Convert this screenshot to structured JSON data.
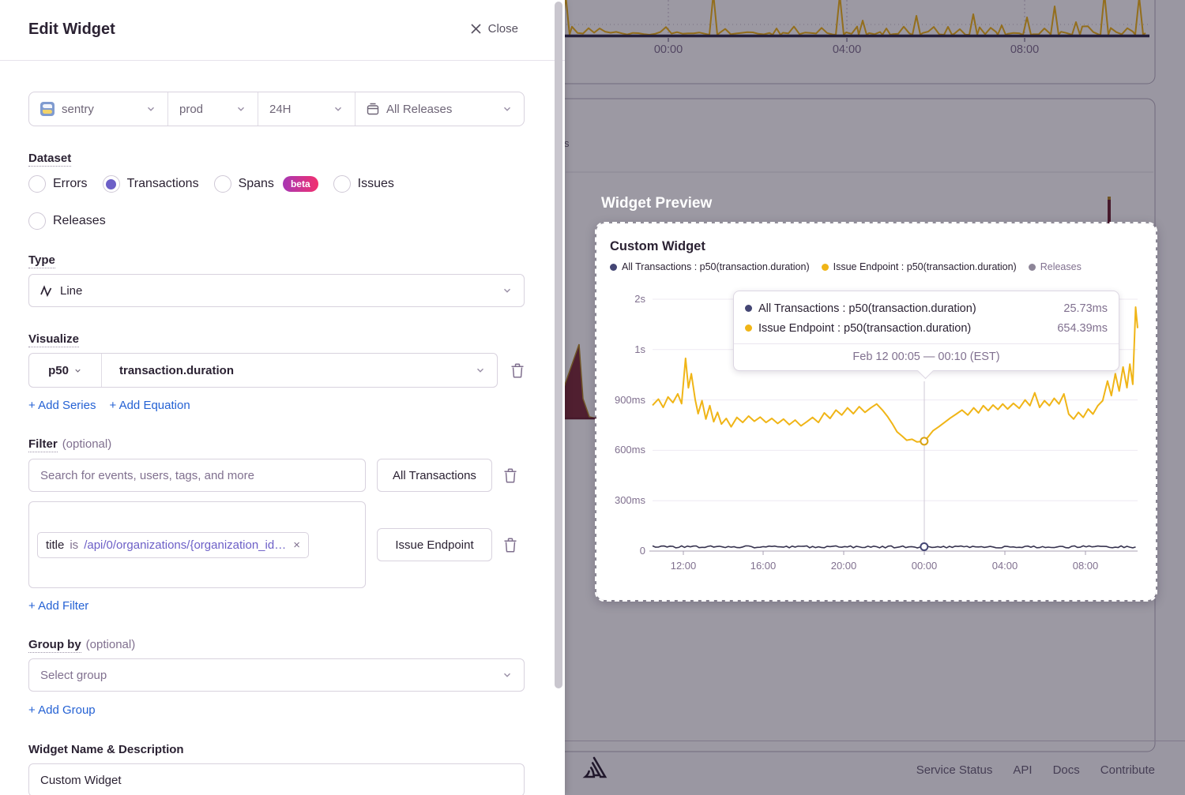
{
  "drawer": {
    "title": "Edit Widget",
    "close_label": "Close",
    "page_filters": {
      "project": "sentry",
      "environment": "prod",
      "date_range": "24H",
      "releases": "All Releases"
    },
    "dataset": {
      "label": "Dataset",
      "options": [
        {
          "label": "Errors",
          "selected": false
        },
        {
          "label": "Transactions",
          "selected": true
        },
        {
          "label": "Spans",
          "selected": false,
          "badge": "beta"
        },
        {
          "label": "Issues",
          "selected": false
        },
        {
          "label": "Releases",
          "selected": false
        }
      ]
    },
    "type": {
      "label": "Type",
      "value": "Line"
    },
    "visualize": {
      "label": "Visualize",
      "aggregate": "p50",
      "field": "transaction.duration",
      "add_series_label": "+ Add Series",
      "add_equation_label": "+ Add Equation"
    },
    "filter": {
      "label": "Filter",
      "optional_label": "(optional)",
      "search_placeholder": "Search for events, users, tags, and more",
      "rows": [
        {
          "alias": "All Transactions"
        },
        {
          "alias": "Issue Endpoint",
          "token": {
            "key": "title",
            "operator": "is",
            "value": "/api/0/organizations/{organization_id…"
          }
        }
      ],
      "add_filter_label": "+ Add Filter"
    },
    "group_by": {
      "label": "Group by",
      "optional_label": "(optional)",
      "placeholder": "Select group",
      "add_group_label": "+ Add Group"
    },
    "name": {
      "label": "Widget Name & Description",
      "value": "Custom Widget"
    }
  },
  "preview": {
    "heading": "Widget Preview",
    "card_title": "Custom Widget",
    "legend": [
      {
        "label": "All Transactions : p50(transaction.duration)",
        "color": "#444674",
        "muted": false
      },
      {
        "label": "Issue Endpoint : p50(transaction.duration)",
        "color": "#f0b517",
        "muted": false
      },
      {
        "label": "Releases",
        "color": "#8d8598",
        "muted": true
      }
    ],
    "tooltip": {
      "rows": [
        {
          "label": "All Transactions : p50(transaction.duration)",
          "value": "25.73ms",
          "color": "#444674"
        },
        {
          "label": "Issue Endpoint : p50(transaction.duration)",
          "value": "654.39ms",
          "color": "#f0b517"
        }
      ],
      "timestamp": "Feb 12 00:05 — 00:10 (EST)"
    }
  },
  "background": {
    "partial_axis_label": "s",
    "top_chart": {
      "x_ticks": [
        "00:00",
        "04:00",
        "08:00"
      ]
    },
    "footer": {
      "links": [
        "Service Status",
        "API",
        "Docs",
        "Contribute"
      ]
    }
  },
  "chart_data": [
    {
      "type": "line",
      "title": "Custom Widget",
      "y_tick_labels": [
        "0",
        "300ms",
        "600ms",
        "900ms",
        "1s",
        "2s"
      ],
      "x_tick_labels": [
        "12:00",
        "16:00",
        "20:00",
        "00:00",
        "04:00",
        "08:00"
      ],
      "series": [
        {
          "name": "All Transactions : p50(transaction.duration)",
          "color": "#444674",
          "line_color": "#37334f",
          "style": "flat",
          "base_ms": 25
        },
        {
          "name": "Issue Endpoint : p50(transaction.duration)",
          "color": "#f0b517",
          "line_color": "#f0b517",
          "style": "points",
          "points_frac_ms": [
            [
              0,
              868
            ],
            [
              0.012,
              905
            ],
            [
              0.022,
              856
            ],
            [
              0.032,
              918
            ],
            [
              0.042,
              884
            ],
            [
              0.052,
              936
            ],
            [
              0.06,
              878
            ],
            [
              0.068,
              1148
            ],
            [
              0.074,
              972
            ],
            [
              0.08,
              1056
            ],
            [
              0.088,
              902
            ],
            [
              0.094,
              818
            ],
            [
              0.102,
              896
            ],
            [
              0.11,
              786
            ],
            [
              0.118,
              866
            ],
            [
              0.126,
              770
            ],
            [
              0.134,
              826
            ],
            [
              0.142,
              756
            ],
            [
              0.152,
              790
            ],
            [
              0.162,
              740
            ],
            [
              0.174,
              796
            ],
            [
              0.186,
              766
            ],
            [
              0.198,
              804
            ],
            [
              0.21,
              773
            ],
            [
              0.222,
              798
            ],
            [
              0.234,
              766
            ],
            [
              0.246,
              790
            ],
            [
              0.258,
              760
            ],
            [
              0.27,
              786
            ],
            [
              0.282,
              753
            ],
            [
              0.294,
              780
            ],
            [
              0.306,
              746
            ],
            [
              0.318,
              770
            ],
            [
              0.33,
              796
            ],
            [
              0.342,
              766
            ],
            [
              0.354,
              823
            ],
            [
              0.366,
              790
            ],
            [
              0.378,
              840
            ],
            [
              0.39,
              810
            ],
            [
              0.402,
              853
            ],
            [
              0.414,
              818
            ],
            [
              0.426,
              860
            ],
            [
              0.438,
              826
            ],
            [
              0.45,
              853
            ],
            [
              0.462,
              876
            ],
            [
              0.474,
              840
            ],
            [
              0.484,
              803
            ],
            [
              0.494,
              760
            ],
            [
              0.504,
              710
            ],
            [
              0.514,
              686
            ],
            [
              0.524,
              660
            ],
            [
              0.535,
              666
            ],
            [
              0.545,
              650
            ],
            [
              0.56,
              654
            ],
            [
              0.568,
              680
            ],
            [
              0.578,
              716
            ],
            [
              0.59,
              740
            ],
            [
              0.602,
              766
            ],
            [
              0.614,
              793
            ],
            [
              0.626,
              816
            ],
            [
              0.638,
              840
            ],
            [
              0.65,
              810
            ],
            [
              0.662,
              853
            ],
            [
              0.672,
              823
            ],
            [
              0.682,
              866
            ],
            [
              0.692,
              836
            ],
            [
              0.702,
              870
            ],
            [
              0.712,
              843
            ],
            [
              0.722,
              876
            ],
            [
              0.732,
              846
            ],
            [
              0.744,
              880
            ],
            [
              0.756,
              850
            ],
            [
              0.768,
              900
            ],
            [
              0.778,
              866
            ],
            [
              0.788,
              943
            ],
            [
              0.798,
              856
            ],
            [
              0.808,
              896
            ],
            [
              0.818,
              866
            ],
            [
              0.828,
              910
            ],
            [
              0.838,
              876
            ],
            [
              0.848,
              936
            ],
            [
              0.858,
              816
            ],
            [
              0.868,
              786
            ],
            [
              0.878,
              826
            ],
            [
              0.888,
              796
            ],
            [
              0.898,
              846
            ],
            [
              0.908,
              816
            ],
            [
              0.918,
              866
            ],
            [
              0.928,
              896
            ],
            [
              0.938,
              1013
            ],
            [
              0.946,
              926
            ],
            [
              0.954,
              1056
            ],
            [
              0.962,
              953
            ],
            [
              0.97,
              1096
            ],
            [
              0.978,
              973
            ],
            [
              0.984,
              1113
            ],
            [
              0.99,
              993
            ],
            [
              0.996,
              1453
            ],
            [
              1,
              1328
            ]
          ]
        }
      ],
      "hover": {
        "x_frac": 0.56,
        "values_ms": [
          25.73,
          654.39
        ]
      }
    },
    {
      "type": "line",
      "context": "background-top-chart",
      "x_tick_labels": [
        "00:00",
        "04:00",
        "08:00"
      ],
      "series": [
        {
          "name": "yellow-series",
          "color": "#f0b517",
          "spikes_x_peak": [
            [
              716,
              -6
            ],
            [
              903,
              -8
            ],
            [
              983,
              36
            ],
            [
              1063,
              -6
            ],
            [
              1092,
              26
            ],
            [
              1122,
              36
            ],
            [
              1160,
              20
            ],
            [
              1200,
              34
            ],
            [
              1232,
              18
            ],
            [
              1268,
              32
            ],
            [
              1300,
              22
            ],
            [
              1335,
              8
            ],
            [
              1362,
              28
            ],
            [
              1398,
              -8
            ],
            [
              1442,
              -4
            ]
          ]
        },
        {
          "name": "dark-baseline-series",
          "color": "#322e4a",
          "style": "flat-baseline"
        }
      ]
    }
  ]
}
